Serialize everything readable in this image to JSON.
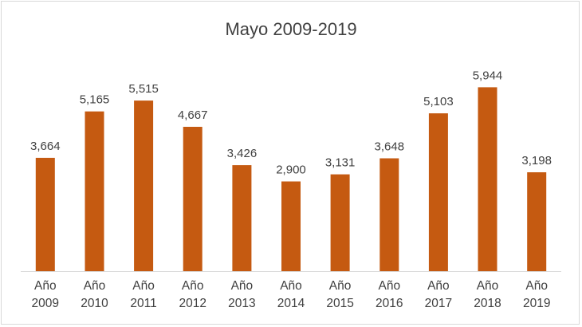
{
  "chart_data": {
    "type": "bar",
    "title": "Mayo 2009-2019",
    "categories": [
      [
        "Año",
        "2009"
      ],
      [
        "Año",
        "2010"
      ],
      [
        "Año",
        "2011"
      ],
      [
        "Año",
        "2012"
      ],
      [
        "Año",
        "2013"
      ],
      [
        "Año",
        "2014"
      ],
      [
        "Año",
        "2015"
      ],
      [
        "Año",
        "2016"
      ],
      [
        "Año",
        "2017"
      ],
      [
        "Año",
        "2018"
      ],
      [
        "Año",
        "2019"
      ]
    ],
    "values": [
      3664,
      5165,
      5515,
      4667,
      3426,
      2900,
      3131,
      3648,
      5103,
      5944,
      3198
    ],
    "value_labels": [
      "3,664",
      "5,165",
      "5,515",
      "4,667",
      "3,426",
      "2,900",
      "3,131",
      "3,648",
      "5,103",
      "5,944",
      "3,198"
    ],
    "bar_color": "#c55a11",
    "ylim": [
      0,
      6600
    ],
    "grid": false,
    "legend": "none"
  }
}
